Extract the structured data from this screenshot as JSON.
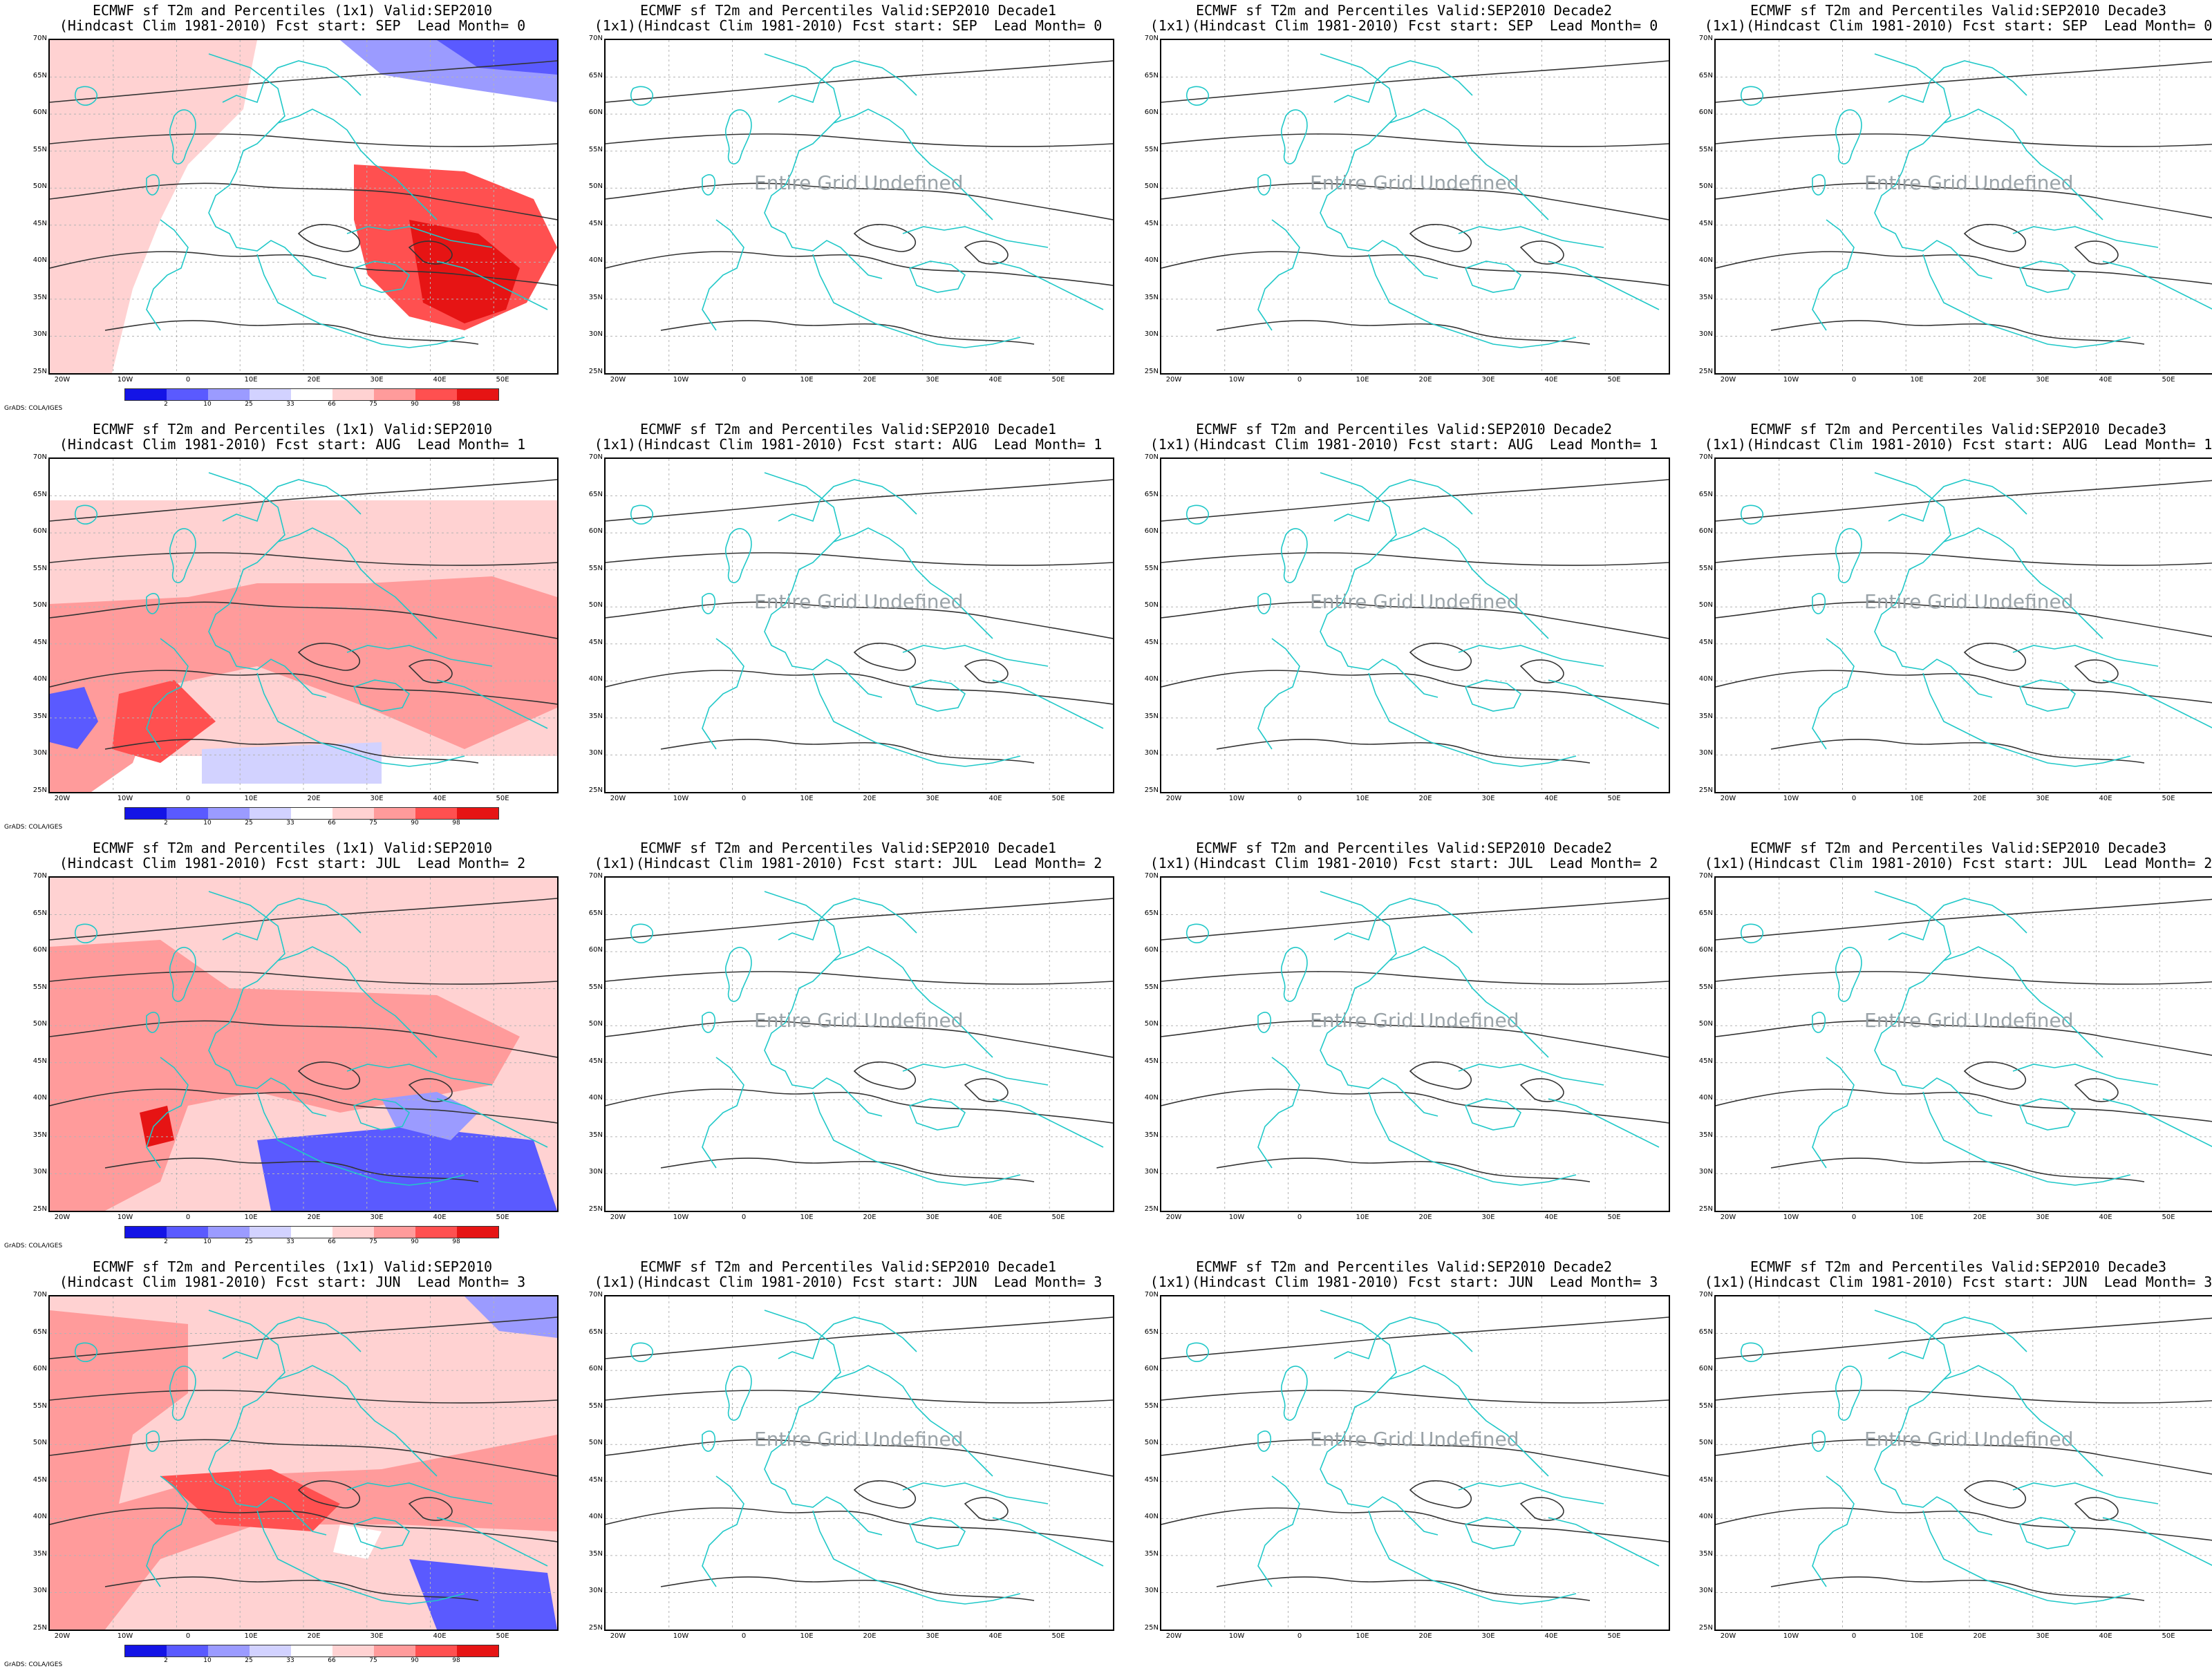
{
  "panels": [
    [
      "ECMWF sf T2m and Percentiles (1x1) Valid:SEP2010\n(Hindcast Clim 1981-2010) Fcst start: SEP  Lead Month= 0",
      "ECMWF sf T2m and Percentiles Valid:SEP2010 Decade1\n(1x1)(Hindcast Clim 1981-2010) Fcst start: SEP  Lead Month= 0",
      "ECMWF sf T2m and Percentiles Valid:SEP2010 Decade2\n(1x1)(Hindcast Clim 1981-2010) Fcst start: SEP  Lead Month= 0",
      "ECMWF sf T2m and Percentiles Valid:SEP2010 Decade3\n(1x1)(Hindcast Clim 1981-2010) Fcst start: SEP  Lead Month= 0"
    ],
    [
      "ECMWF sf T2m and Percentiles (1x1) Valid:SEP2010\n(Hindcast Clim 1981-2010) Fcst start: AUG  Lead Month= 1",
      "ECMWF sf T2m and Percentiles Valid:SEP2010 Decade1\n(1x1)(Hindcast Clim 1981-2010) Fcst start: AUG  Lead Month= 1",
      "ECMWF sf T2m and Percentiles Valid:SEP2010 Decade2\n(1x1)(Hindcast Clim 1981-2010) Fcst start: AUG  Lead Month= 1",
      "ECMWF sf T2m and Percentiles Valid:SEP2010 Decade3\n(1x1)(Hindcast Clim 1981-2010) Fcst start: AUG  Lead Month= 1"
    ],
    [
      "ECMWF sf T2m and Percentiles (1x1) Valid:SEP2010\n(Hindcast Clim 1981-2010) Fcst start: JUL  Lead Month= 2",
      "ECMWF sf T2m and Percentiles Valid:SEP2010 Decade1\n(1x1)(Hindcast Clim 1981-2010) Fcst start: JUL  Lead Month= 2",
      "ECMWF sf T2m and Percentiles Valid:SEP2010 Decade2\n(1x1)(Hindcast Clim 1981-2010) Fcst start: JUL  Lead Month= 2",
      "ECMWF sf T2m and Percentiles Valid:SEP2010 Decade3\n(1x1)(Hindcast Clim 1981-2010) Fcst start: JUL  Lead Month= 2"
    ],
    [
      "ECMWF sf T2m and Percentiles (1x1) Valid:SEP2010\n(Hindcast Clim 1981-2010) Fcst start: JUN  Lead Month= 3",
      "ECMWF sf T2m and Percentiles Valid:SEP2010 Decade1\n(1x1)(Hindcast Clim 1981-2010) Fcst start: JUN  Lead Month= 3",
      "ECMWF sf T2m and Percentiles Valid:SEP2010 Decade2\n(1x1)(Hindcast Clim 1981-2010) Fcst start: JUN  Lead Month= 3",
      "ECMWF sf T2m and Percentiles Valid:SEP2010 Decade3\n(1x1)(Hindcast Clim 1981-2010) Fcst start: JUN  Lead Month= 3"
    ]
  ],
  "undefined_text": "Entire Grid Undefined",
  "lat_labels": [
    "70N",
    "65N",
    "60N",
    "55N",
    "50N",
    "45N",
    "40N",
    "35N",
    "30N",
    "25N"
  ],
  "lon_labels": [
    "20W",
    "10W",
    "0",
    "10E",
    "20E",
    "30E",
    "40E",
    "50E"
  ],
  "colorbar": {
    "labels": [
      "2",
      "10",
      "25",
      "33",
      "66",
      "75",
      "90",
      "98"
    ],
    "colors": [
      "#1414e6",
      "#5a5aff",
      "#9b9bff",
      "#d2d2ff",
      "#ffffff",
      "#ffd2d2",
      "#ff9b9b",
      "#ff5050",
      "#e61414"
    ]
  },
  "credit": "GrADS: COLA/IGES",
  "colors": {
    "coast": "#20c8c8",
    "contour": "#333333",
    "grid": "#b4b4b4"
  }
}
